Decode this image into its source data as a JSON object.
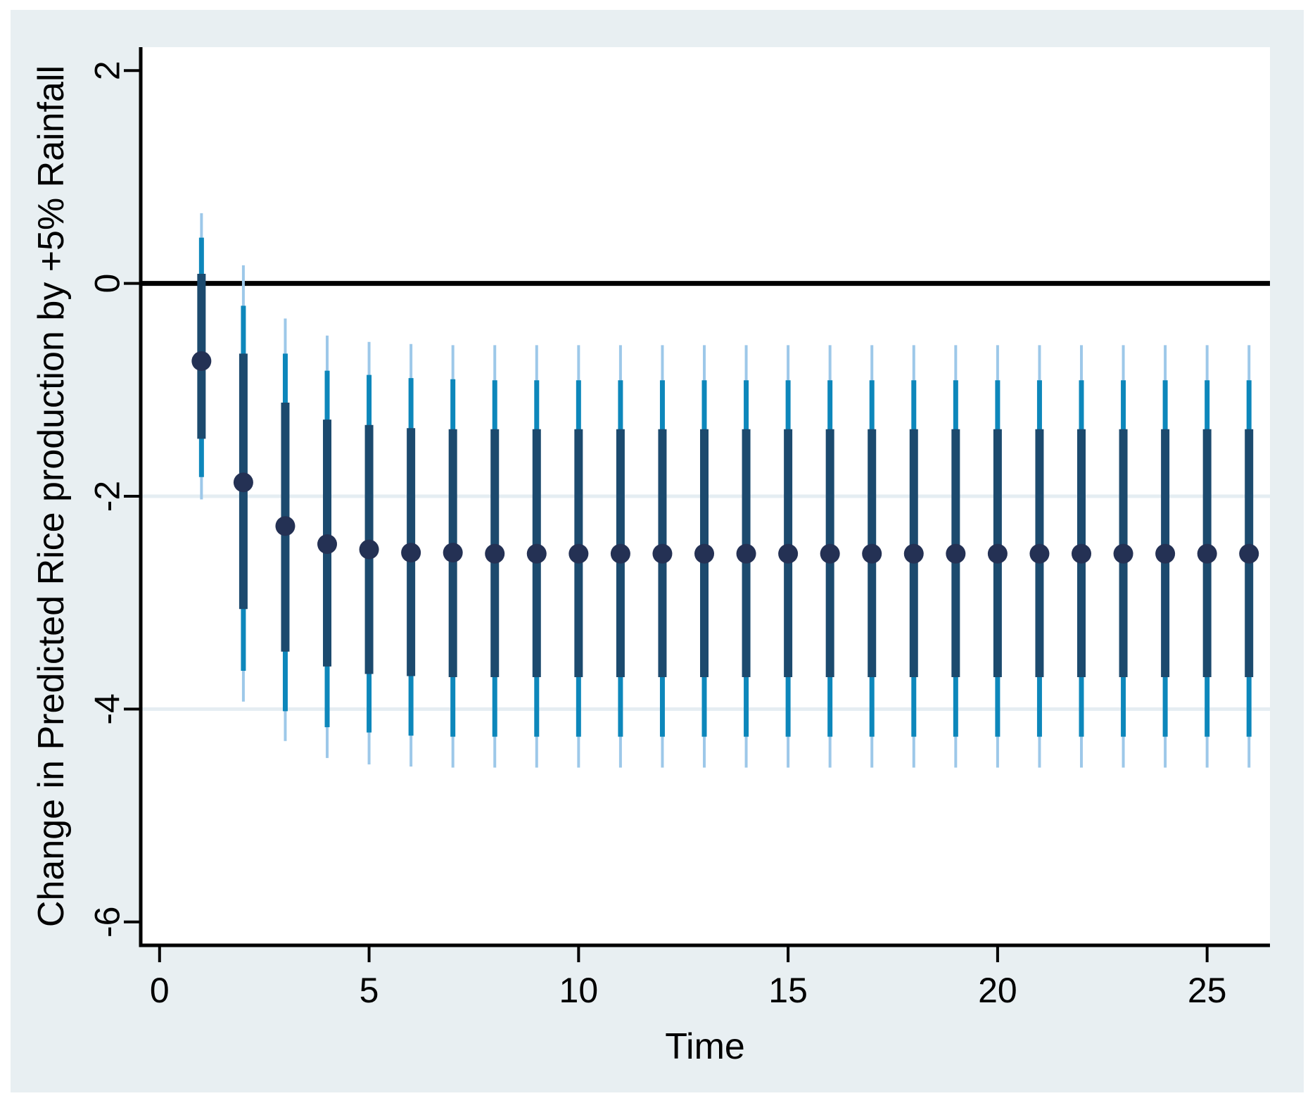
{
  "figure": {
    "background": "#ffffff",
    "canvas_color": "#e8eff2",
    "plot_background": "#ffffff",
    "axis_color": "#000000"
  },
  "chart_data": {
    "type": "errorbar",
    "title": "",
    "xlabel": "Time",
    "ylabel": "Change in Predicted Rice production by +5% Rainfall",
    "x_ticks": [
      0,
      5,
      10,
      15,
      20,
      25
    ],
    "y_ticks": [
      2,
      0,
      -2,
      -4,
      -6
    ],
    "xlim": [
      -0.45,
      26.5
    ],
    "ylim": [
      -6.22,
      2.22
    ],
    "reference_line_y": 0,
    "gridlines_y": [
      -2,
      -4
    ],
    "grid_color": "#e5edf2",
    "grid_on": true,
    "legend": "none",
    "x": [
      1,
      2,
      3,
      4,
      5,
      6,
      7,
      8,
      9,
      10,
      11,
      12,
      13,
      14,
      15,
      16,
      17,
      18,
      19,
      20,
      21,
      22,
      23,
      24,
      25,
      26
    ],
    "series": [
      {
        "name": "point-estimate",
        "style": "dot",
        "color": "#243154",
        "values": [
          -0.73,
          -1.87,
          -2.28,
          -2.45,
          -2.5,
          -2.53,
          -2.53,
          -2.54,
          -2.54,
          -2.54,
          -2.54,
          -2.54,
          -2.54,
          -2.54,
          -2.54,
          -2.54,
          -2.54,
          -2.54,
          -2.54,
          -2.54,
          -2.54,
          -2.54,
          -2.54,
          -2.54,
          -2.54,
          -2.54
        ]
      },
      {
        "name": "inner-ci",
        "style": "thick-bar",
        "color": "#1c4a6e",
        "hi": [
          0.09,
          -0.66,
          -1.12,
          -1.28,
          -1.33,
          -1.36,
          -1.37,
          -1.37,
          -1.37,
          -1.37,
          -1.37,
          -1.37,
          -1.37,
          -1.37,
          -1.37,
          -1.37,
          -1.37,
          -1.37,
          -1.37,
          -1.37,
          -1.37,
          -1.37,
          -1.37,
          -1.37,
          -1.37,
          -1.37
        ],
        "lo": [
          -1.46,
          -3.06,
          -3.46,
          -3.6,
          -3.67,
          -3.69,
          -3.7,
          -3.7,
          -3.7,
          -3.7,
          -3.7,
          -3.7,
          -3.7,
          -3.7,
          -3.7,
          -3.7,
          -3.7,
          -3.7,
          -3.7,
          -3.7,
          -3.7,
          -3.7,
          -3.7,
          -3.7,
          -3.7,
          -3.7
        ]
      },
      {
        "name": "middle-ci",
        "style": "medium-bar",
        "color": "#0d87bb",
        "hi": [
          0.43,
          -0.21,
          -0.66,
          -0.82,
          -0.86,
          -0.89,
          -0.9,
          -0.91,
          -0.91,
          -0.91,
          -0.91,
          -0.91,
          -0.91,
          -0.91,
          -0.91,
          -0.91,
          -0.91,
          -0.91,
          -0.91,
          -0.91,
          -0.91,
          -0.91,
          -0.91,
          -0.91,
          -0.91,
          -0.91
        ],
        "lo": [
          -1.82,
          -3.64,
          -4.02,
          -4.17,
          -4.22,
          -4.25,
          -4.26,
          -4.26,
          -4.26,
          -4.26,
          -4.26,
          -4.26,
          -4.26,
          -4.26,
          -4.26,
          -4.26,
          -4.26,
          -4.26,
          -4.26,
          -4.26,
          -4.26,
          -4.26,
          -4.26,
          -4.26,
          -4.26,
          -4.26
        ]
      },
      {
        "name": "outer-ci",
        "style": "thin-bar",
        "color": "#9dc8e9",
        "hi": [
          0.66,
          0.17,
          -0.33,
          -0.49,
          -0.55,
          -0.57,
          -0.58,
          -0.58,
          -0.58,
          -0.58,
          -0.58,
          -0.58,
          -0.58,
          -0.58,
          -0.58,
          -0.58,
          -0.58,
          -0.58,
          -0.58,
          -0.58,
          -0.58,
          -0.58,
          -0.58,
          -0.58,
          -0.58,
          -0.58
        ],
        "lo": [
          -2.03,
          -3.93,
          -4.3,
          -4.46,
          -4.52,
          -4.54,
          -4.55,
          -4.55,
          -4.55,
          -4.55,
          -4.55,
          -4.55,
          -4.55,
          -4.55,
          -4.55,
          -4.55,
          -4.55,
          -4.55,
          -4.55,
          -4.55,
          -4.55,
          -4.55,
          -4.55,
          -4.55,
          -4.55,
          -4.55
        ]
      }
    ]
  }
}
